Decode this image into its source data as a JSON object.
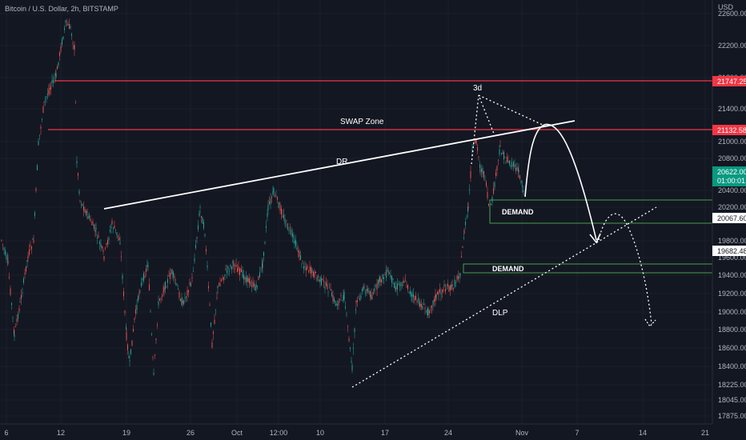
{
  "symbol_title": "Bitcoin / U.S. Dollar, 2h, BITSTAMP",
  "currency": "USD",
  "colors": {
    "background": "#131722",
    "grid": "#1e222d",
    "axis_text": "#b2b5be",
    "resistance": "#f23645",
    "current_price": "#089981",
    "demand": "#4caf50",
    "annotation": "#ffffff",
    "candle_up": "#26a69a",
    "candle_down": "#ef5350"
  },
  "y_axis_ticks": [
    "22600.00",
    "22200.00",
    "21800.00",
    "21400.00",
    "21000.00",
    "20800.00",
    "20400.00",
    "20200.00",
    "19800.00",
    "19600.00",
    "19400.00",
    "19200.00",
    "19000.00",
    "18800.00",
    "18600.00",
    "18400.00",
    "18225.00",
    "18045.00",
    "17875.00"
  ],
  "x_axis_ticks": [
    "6",
    "12",
    "19",
    "26",
    "Oct",
    "12:00",
    "10",
    "17",
    "24",
    "Nov",
    "7",
    "14",
    "21"
  ],
  "price_tags": {
    "resistance_upper": "21747.25",
    "resistance_lower": "21132.58",
    "current_price": "20622.00",
    "countdown": "01:00:01",
    "level_mid": "20067.60",
    "level_low": "19682.48"
  },
  "annotations": {
    "swap_zone": "SWAP Zone",
    "dr": "DR",
    "three_d": "3d",
    "demand_upper": "DEMAND",
    "demand_lower": "DEMAND",
    "dlp": "DLP"
  },
  "chart_data": {
    "type": "candlestick",
    "instrument": "Bitcoin / U.S. Dollar",
    "interval": "2h",
    "exchange": "BITSTAMP",
    "ylim": [
      17800,
      22800
    ],
    "levels": [
      {
        "label": "resistance",
        "value": 21747.25
      },
      {
        "label": "SWAP Zone",
        "value": 21132.58
      },
      {
        "label": "current",
        "value": 20622.0
      },
      {
        "label": "level",
        "value": 20067.6
      },
      {
        "label": "level",
        "value": 19682.48
      }
    ]
  }
}
